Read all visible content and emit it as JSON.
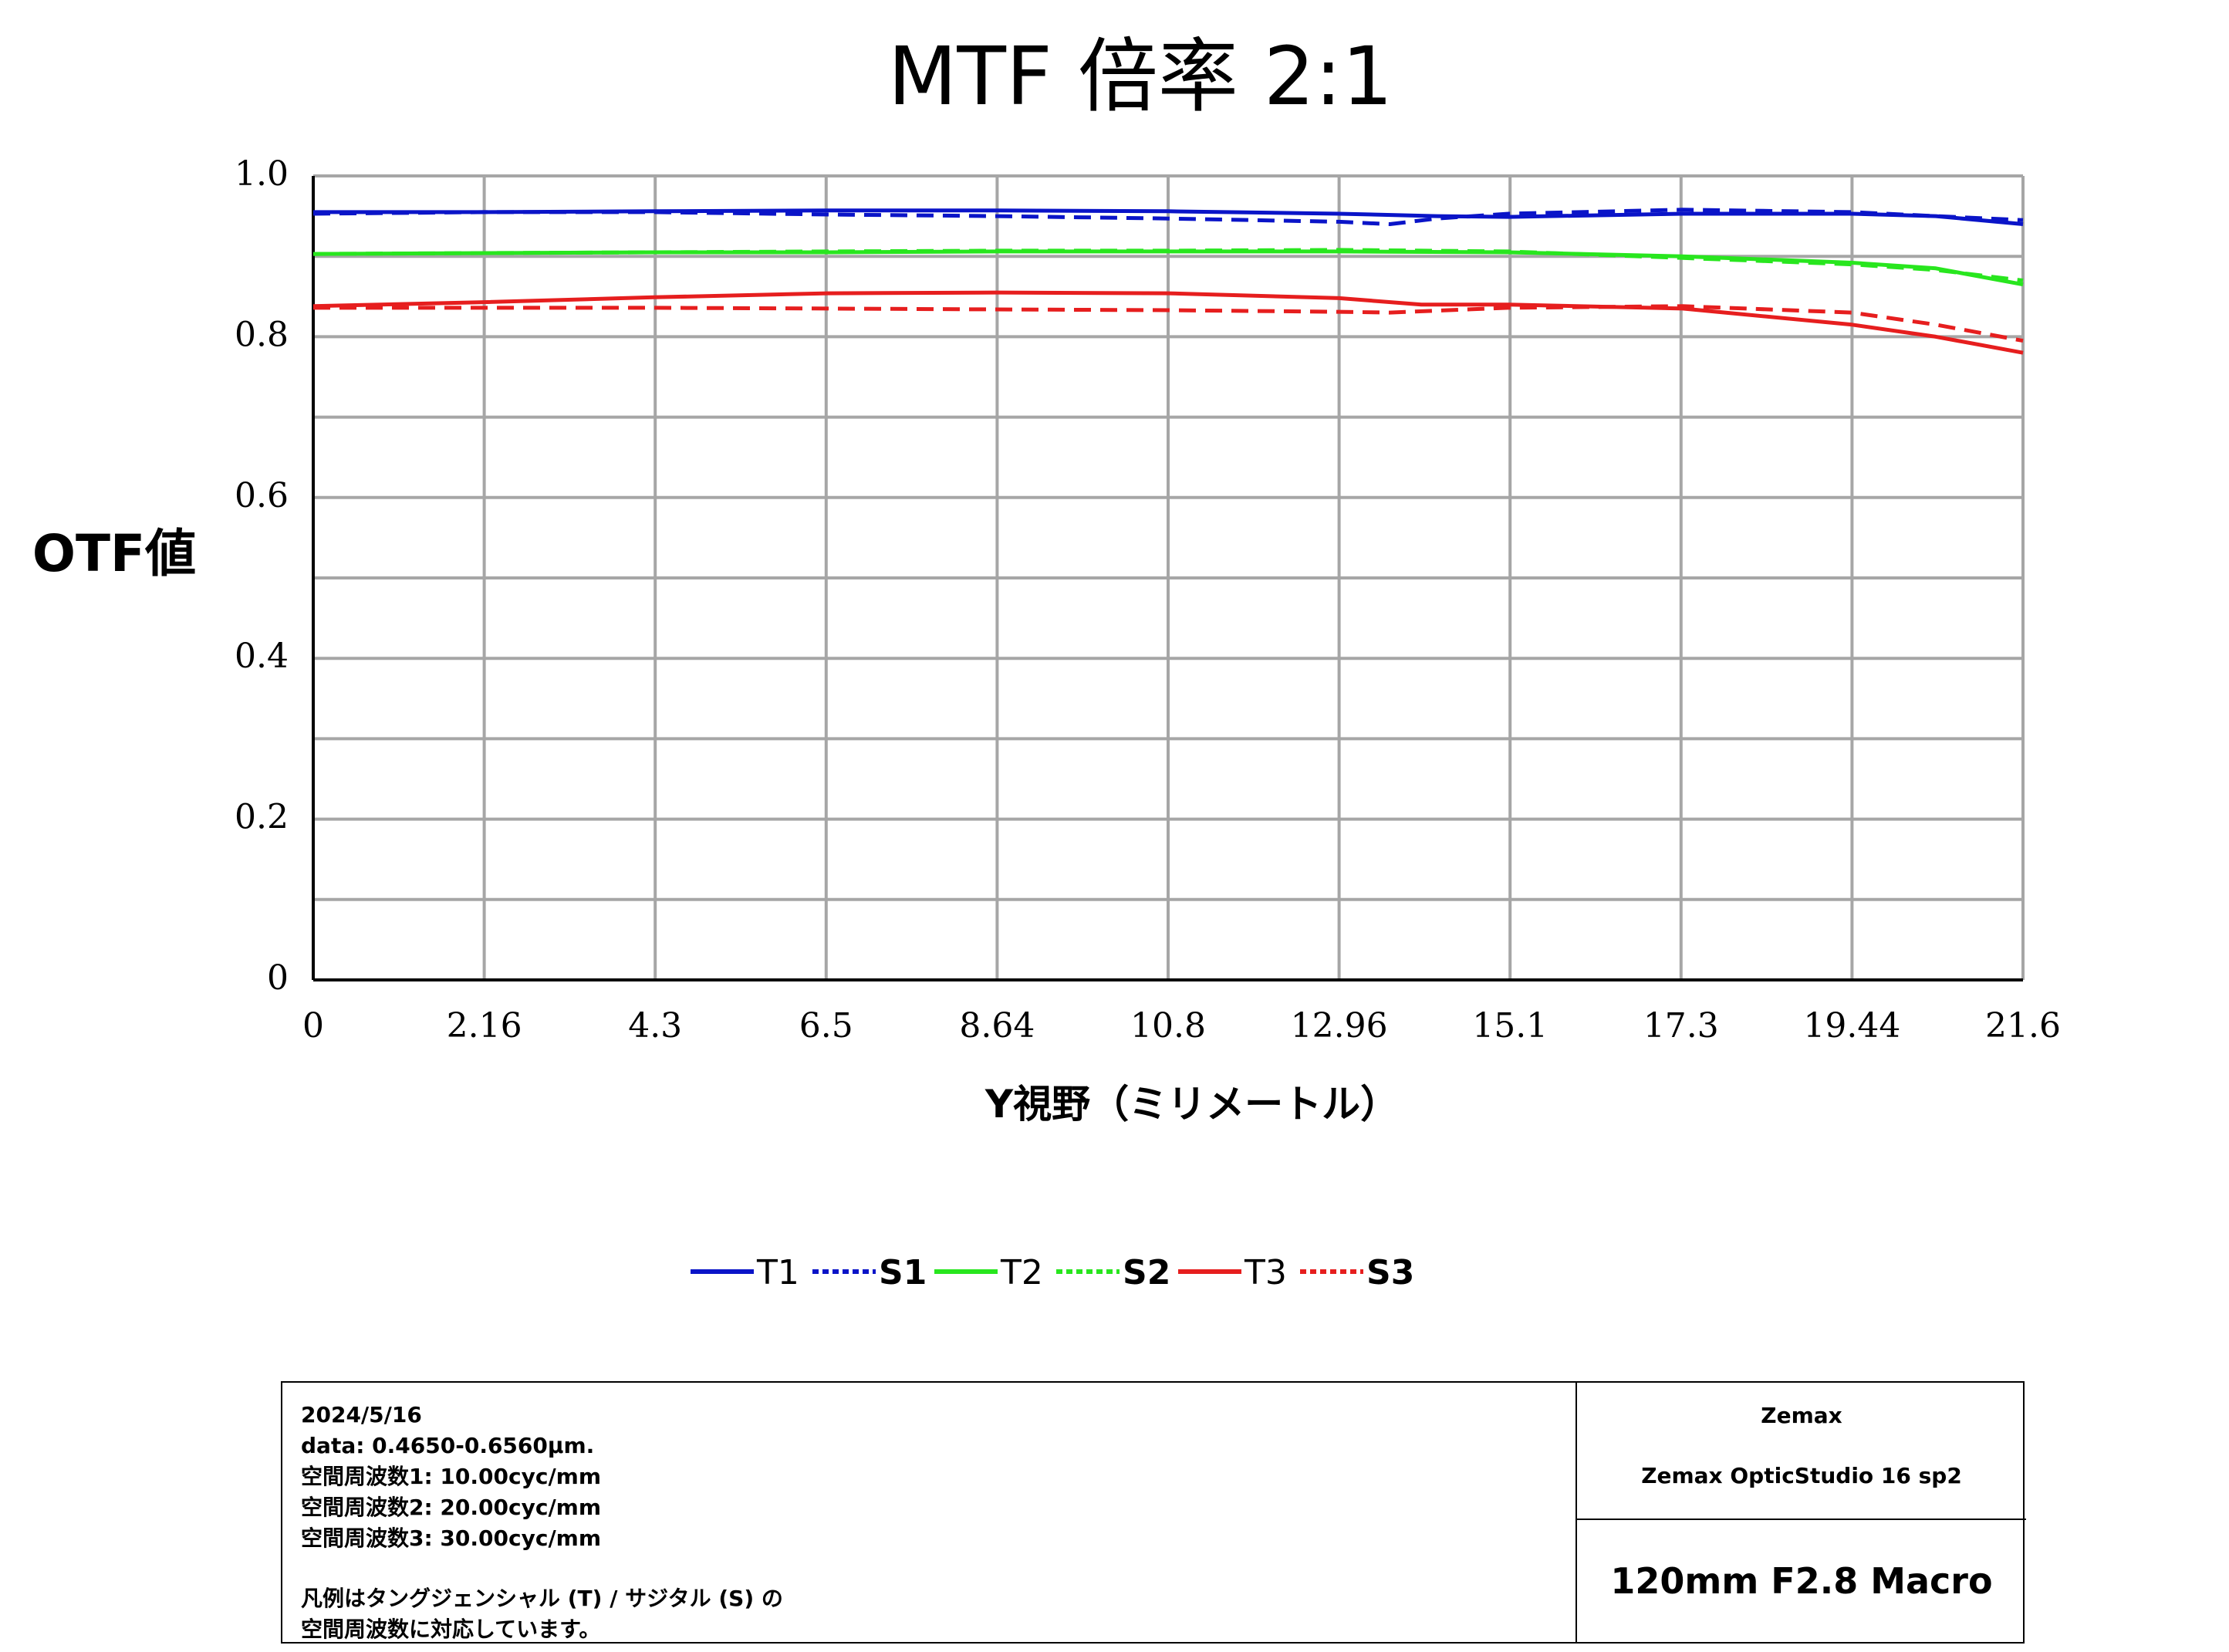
{
  "chart_data": {
    "type": "line",
    "title": "MTF 倍率 2:1",
    "xlabel": "Y視野（ミリメートル）",
    "ylabel": "OTF値",
    "xlim": [
      0,
      21.6
    ],
    "ylim": [
      0,
      1.0
    ],
    "x_ticks": [
      "0",
      "2.16",
      "4.3",
      "6.5",
      "8.64",
      "10.8",
      "12.96",
      "15.1",
      "17.3",
      "19.44",
      "21.6"
    ],
    "y_ticks": [
      "0",
      "0.2",
      "0.4",
      "0.6",
      "0.8",
      "1.0"
    ],
    "grid": true,
    "legend_position": "bottom",
    "series": [
      {
        "name": "T1",
        "color": "#0a14c8",
        "style": "solid",
        "x": [
          0,
          2.16,
          4.3,
          6.5,
          8.64,
          10.8,
          12.96,
          14.2,
          15.1,
          17.3,
          19.44,
          20.5,
          21.6
        ],
        "y": [
          0.955,
          0.955,
          0.956,
          0.957,
          0.957,
          0.956,
          0.953,
          0.95,
          0.949,
          0.953,
          0.953,
          0.95,
          0.94
        ]
      },
      {
        "name": "S1",
        "color": "#0a14c8",
        "style": "dashed",
        "x": [
          0,
          2.16,
          4.3,
          6.5,
          8.64,
          10.8,
          12.96,
          13.6,
          14.2,
          15.1,
          17.3,
          19.44,
          20.5,
          21.6
        ],
        "y": [
          0.953,
          0.955,
          0.955,
          0.952,
          0.95,
          0.947,
          0.943,
          0.94,
          0.947,
          0.953,
          0.958,
          0.955,
          0.95,
          0.945
        ]
      },
      {
        "name": "T2",
        "color": "#28e61e",
        "style": "solid",
        "x": [
          0,
          2.16,
          4.3,
          6.5,
          8.64,
          10.8,
          12.96,
          15.1,
          17.3,
          19.44,
          20.5,
          21.6
        ],
        "y": [
          0.903,
          0.904,
          0.905,
          0.905,
          0.906,
          0.906,
          0.906,
          0.905,
          0.9,
          0.892,
          0.885,
          0.865
        ]
      },
      {
        "name": "S2",
        "color": "#28e61e",
        "style": "dashed",
        "x": [
          0,
          2.16,
          4.3,
          6.5,
          8.64,
          10.8,
          12.96,
          15.1,
          17.3,
          19.44,
          20.5,
          21.6
        ],
        "y": [
          0.903,
          0.904,
          0.905,
          0.906,
          0.907,
          0.907,
          0.908,
          0.906,
          0.898,
          0.89,
          0.883,
          0.87
        ]
      },
      {
        "name": "T3",
        "color": "#e61e1e",
        "style": "solid",
        "x": [
          0,
          2.16,
          4.3,
          6.5,
          8.64,
          10.8,
          12.96,
          14.0,
          15.1,
          17.3,
          19.44,
          20.5,
          21.6
        ],
        "y": [
          0.838,
          0.843,
          0.849,
          0.854,
          0.855,
          0.854,
          0.848,
          0.84,
          0.84,
          0.835,
          0.815,
          0.8,
          0.78
        ]
      },
      {
        "name": "S3",
        "color": "#e61e1e",
        "style": "dashed",
        "x": [
          0,
          2.16,
          4.3,
          6.5,
          8.64,
          10.8,
          12.96,
          13.6,
          15.1,
          17.3,
          19.44,
          20.5,
          21.6
        ],
        "y": [
          0.836,
          0.836,
          0.836,
          0.835,
          0.834,
          0.833,
          0.831,
          0.83,
          0.836,
          0.838,
          0.83,
          0.815,
          0.795
        ]
      }
    ]
  },
  "info": {
    "date": "2024/5/16",
    "data_range": "data: 0.4650-0.6560μm.",
    "freq1": "空間周波数1: 10.00cyc/mm",
    "freq2": "空間周波数2: 20.00cyc/mm",
    "freq3": "空間周波数3: 30.00cyc/mm",
    "legend_note_1": "凡例はタングジェンシャル (T) / サジタル (S) の",
    "legend_note_2": "空間周波数に対応しています。",
    "vendor": "Zemax",
    "product": "Zemax OpticStudio 16 sp2",
    "lens": "120mm F2.8 Macro"
  }
}
